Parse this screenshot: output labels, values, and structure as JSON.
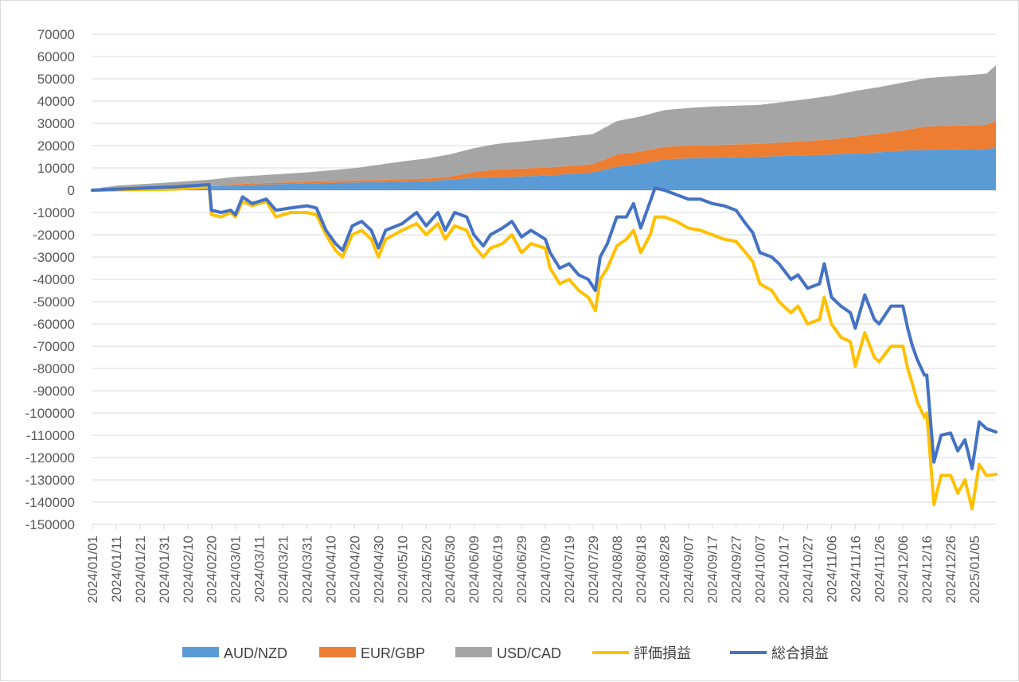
{
  "chart_data": {
    "type": "area",
    "title": "",
    "xlabel": "",
    "ylabel": "",
    "ylim": [
      -150000,
      70000
    ],
    "y_ticks": [
      70000,
      60000,
      50000,
      40000,
      30000,
      20000,
      10000,
      0,
      -10000,
      -20000,
      -30000,
      -40000,
      -50000,
      -60000,
      -70000,
      -80000,
      -90000,
      -100000,
      -110000,
      -120000,
      -130000,
      -140000,
      -150000
    ],
    "x_tick_labels": [
      "2024/01/01",
      "2024/01/11",
      "2024/01/21",
      "2024/01/31",
      "2024/02/10",
      "2024/02/20",
      "2024/03/01",
      "2024/03/11",
      "2024/03/21",
      "2024/03/31",
      "2024/04/10",
      "2024/04/20",
      "2024/04/30",
      "2024/05/10",
      "2024/05/20",
      "2024/05/30",
      "2024/06/09",
      "2024/06/19",
      "2024/06/29",
      "2024/07/09",
      "2024/07/19",
      "2024/07/29",
      "2024/08/08",
      "2024/08/18",
      "2024/08/28",
      "2024/09/07",
      "2024/09/17",
      "2024/09/27",
      "2024/10/07",
      "2024/10/17",
      "2024/10/27",
      "2024/11/06",
      "2024/11/16",
      "2024/11/26",
      "2024/12/06",
      "2024/12/16",
      "2024/12/26",
      "2025/01/05"
    ],
    "x_range": [
      "2024/01/01",
      "2025/01/14"
    ],
    "grid": "horizontal",
    "legend_position": "bottom",
    "stacked_area_series": [
      {
        "name": "AUD/NZD",
        "color": "#5b9bd5",
        "points": [
          [
            "2024/01/01",
            0
          ],
          [
            "2024/01/05",
            700
          ],
          [
            "2024/02/20",
            1800
          ],
          [
            "2024/03/11",
            2500
          ],
          [
            "2024/04/10",
            3300
          ],
          [
            "2024/05/20",
            4000
          ],
          [
            "2024/05/30",
            4800
          ],
          [
            "2024/06/09",
            5500
          ],
          [
            "2024/07/09",
            6500
          ],
          [
            "2024/07/29",
            8000
          ],
          [
            "2024/08/08",
            10500
          ],
          [
            "2024/08/18",
            11800
          ],
          [
            "2024/08/28",
            13800
          ],
          [
            "2024/09/07",
            14300
          ],
          [
            "2024/10/07",
            15000
          ],
          [
            "2024/11/06",
            16000
          ],
          [
            "2024/11/26",
            17000
          ],
          [
            "2024/12/06",
            17800
          ],
          [
            "2024/12/16",
            18100
          ],
          [
            "2025/01/10",
            18500
          ],
          [
            "2025/01/14",
            19000
          ]
        ]
      },
      {
        "name": "EUR/GBP",
        "color": "#ed7d31",
        "points": [
          [
            "2024/01/01",
            0
          ],
          [
            "2024/02/20",
            0
          ],
          [
            "2024/03/01",
            600
          ],
          [
            "2024/04/10",
            800
          ],
          [
            "2024/05/30",
            1300
          ],
          [
            "2024/06/09",
            2600
          ],
          [
            "2024/06/19",
            3500
          ],
          [
            "2024/07/29",
            3700
          ],
          [
            "2024/08/08",
            5500
          ],
          [
            "2024/09/07",
            5700
          ],
          [
            "2024/10/07",
            5800
          ],
          [
            "2024/11/06",
            6800
          ],
          [
            "2024/12/06",
            9000
          ],
          [
            "2024/12/16",
            10500
          ],
          [
            "2025/01/10",
            10800
          ],
          [
            "2025/01/14",
            12000
          ]
        ]
      },
      {
        "name": "USD/CAD",
        "color": "#a5a5a5",
        "points": [
          [
            "2024/01/01",
            0
          ],
          [
            "2024/01/11",
            1200
          ],
          [
            "2024/01/31",
            2000
          ],
          [
            "2024/02/20",
            3000
          ],
          [
            "2024/03/11",
            3500
          ],
          [
            "2024/03/31",
            4200
          ],
          [
            "2024/04/20",
            5500
          ],
          [
            "2024/05/10",
            8000
          ],
          [
            "2024/05/30",
            10000
          ],
          [
            "2024/06/19",
            11500
          ],
          [
            "2024/07/09",
            12800
          ],
          [
            "2024/07/29",
            13500
          ],
          [
            "2024/08/08",
            15000
          ],
          [
            "2024/08/28",
            16500
          ],
          [
            "2024/09/17",
            17300
          ],
          [
            "2024/10/07",
            17500
          ],
          [
            "2024/10/27",
            18800
          ],
          [
            "2024/11/16",
            20500
          ],
          [
            "2024/12/06",
            21500
          ],
          [
            "2024/12/16",
            21700
          ],
          [
            "2025/01/10",
            23000
          ],
          [
            "2025/01/14",
            25000
          ]
        ]
      }
    ],
    "line_series": [
      {
        "name": "評価損益",
        "color": "#ffc000",
        "points": [
          [
            "2024/01/01",
            0
          ],
          [
            "2024/02/05",
            500
          ],
          [
            "2024/02/19",
            1500
          ],
          [
            "2024/02/20",
            -11000
          ],
          [
            "2024/02/24",
            -12000
          ],
          [
            "2024/02/28",
            -10000
          ],
          [
            "2024/03/01",
            -12000
          ],
          [
            "2024/03/04",
            -5000
          ],
          [
            "2024/03/08",
            -7000
          ],
          [
            "2024/03/14",
            -5000
          ],
          [
            "2024/03/18",
            -12000
          ],
          [
            "2024/03/24",
            -10000
          ],
          [
            "2024/03/31",
            -10000
          ],
          [
            "2024/04/04",
            -11000
          ],
          [
            "2024/04/08",
            -20000
          ],
          [
            "2024/04/12",
            -27000
          ],
          [
            "2024/04/15",
            -30000
          ],
          [
            "2024/04/19",
            -20000
          ],
          [
            "2024/04/23",
            -18000
          ],
          [
            "2024/04/27",
            -22000
          ],
          [
            "2024/04/30",
            -30000
          ],
          [
            "2024/05/03",
            -22000
          ],
          [
            "2024/05/10",
            -18000
          ],
          [
            "2024/05/16",
            -15000
          ],
          [
            "2024/05/20",
            -20000
          ],
          [
            "2024/05/25",
            -15000
          ],
          [
            "2024/05/28",
            -22000
          ],
          [
            "2024/06/01",
            -16000
          ],
          [
            "2024/06/06",
            -18000
          ],
          [
            "2024/06/09",
            -25000
          ],
          [
            "2024/06/13",
            -30000
          ],
          [
            "2024/06/16",
            -26000
          ],
          [
            "2024/06/21",
            -24000
          ],
          [
            "2024/06/25",
            -20000
          ],
          [
            "2024/06/29",
            -28000
          ],
          [
            "2024/07/03",
            -24000
          ],
          [
            "2024/07/09",
            -26000
          ],
          [
            "2024/07/11",
            -35000
          ],
          [
            "2024/07/15",
            -42000
          ],
          [
            "2024/07/19",
            -40000
          ],
          [
            "2024/07/23",
            -45000
          ],
          [
            "2024/07/27",
            -48000
          ],
          [
            "2024/07/30",
            -54000
          ],
          [
            "2024/08/01",
            -40000
          ],
          [
            "2024/08/04",
            -35000
          ],
          [
            "2024/08/08",
            -25000
          ],
          [
            "2024/08/12",
            -22000
          ],
          [
            "2024/08/15",
            -18000
          ],
          [
            "2024/08/18",
            -28000
          ],
          [
            "2024/08/22",
            -20000
          ],
          [
            "2024/08/24",
            -12000
          ],
          [
            "2024/08/28",
            -12000
          ],
          [
            "2024/09/02",
            -14000
          ],
          [
            "2024/09/07",
            -17000
          ],
          [
            "2024/09/12",
            -18000
          ],
          [
            "2024/09/17",
            -20000
          ],
          [
            "2024/09/22",
            -22000
          ],
          [
            "2024/09/27",
            -23000
          ],
          [
            "2024/10/01",
            -28000
          ],
          [
            "2024/10/04",
            -32000
          ],
          [
            "2024/10/07",
            -42000
          ],
          [
            "2024/10/12",
            -45000
          ],
          [
            "2024/10/15",
            -50000
          ],
          [
            "2024/10/20",
            -55000
          ],
          [
            "2024/10/23",
            -52000
          ],
          [
            "2024/10/27",
            -60000
          ],
          [
            "2024/11/01",
            -58000
          ],
          [
            "2024/11/03",
            -48000
          ],
          [
            "2024/11/06",
            -60000
          ],
          [
            "2024/11/10",
            -66000
          ],
          [
            "2024/11/14",
            -68000
          ],
          [
            "2024/11/16",
            -79000
          ],
          [
            "2024/11/20",
            -64000
          ],
          [
            "2024/11/24",
            -75000
          ],
          [
            "2024/11/26",
            -77000
          ],
          [
            "2024/12/01",
            -70000
          ],
          [
            "2024/12/06",
            -70000
          ],
          [
            "2024/12/08",
            -80000
          ],
          [
            "2024/12/10",
            -87000
          ],
          [
            "2024/12/12",
            -95000
          ],
          [
            "2024/12/15",
            -102000
          ],
          [
            "2024/12/16",
            -100000
          ],
          [
            "2024/12/19",
            -141000
          ],
          [
            "2024/12/22",
            -128000
          ],
          [
            "2024/12/26",
            -128000
          ],
          [
            "2024/12/29",
            -136000
          ],
          [
            "2025/01/01",
            -130000
          ],
          [
            "2025/01/04",
            -143000
          ],
          [
            "2025/01/07",
            -123000
          ],
          [
            "2025/01/10",
            -128000
          ],
          [
            "2025/01/14",
            -127500
          ]
        ]
      },
      {
        "name": "総合損益",
        "color": "#4472c4",
        "points": [
          [
            "2024/01/01",
            0
          ],
          [
            "2024/02/05",
            1500
          ],
          [
            "2024/02/19",
            2500
          ],
          [
            "2024/02/20",
            -9000
          ],
          [
            "2024/02/24",
            -10000
          ],
          [
            "2024/02/28",
            -9000
          ],
          [
            "2024/03/01",
            -11000
          ],
          [
            "2024/03/04",
            -3000
          ],
          [
            "2024/03/08",
            -6000
          ],
          [
            "2024/03/14",
            -4000
          ],
          [
            "2024/03/18",
            -9000
          ],
          [
            "2024/03/24",
            -8000
          ],
          [
            "2024/03/31",
            -7000
          ],
          [
            "2024/04/04",
            -8000
          ],
          [
            "2024/04/08",
            -18000
          ],
          [
            "2024/04/12",
            -24000
          ],
          [
            "2024/04/15",
            -27000
          ],
          [
            "2024/04/19",
            -16000
          ],
          [
            "2024/04/23",
            -14000
          ],
          [
            "2024/04/27",
            -18000
          ],
          [
            "2024/04/30",
            -26000
          ],
          [
            "2024/05/03",
            -18000
          ],
          [
            "2024/05/10",
            -15000
          ],
          [
            "2024/05/16",
            -10000
          ],
          [
            "2024/05/20",
            -16000
          ],
          [
            "2024/05/25",
            -10000
          ],
          [
            "2024/05/28",
            -18000
          ],
          [
            "2024/06/01",
            -10000
          ],
          [
            "2024/06/06",
            -12000
          ],
          [
            "2024/06/09",
            -20000
          ],
          [
            "2024/06/13",
            -25000
          ],
          [
            "2024/06/16",
            -20000
          ],
          [
            "2024/06/21",
            -17000
          ],
          [
            "2024/06/25",
            -14000
          ],
          [
            "2024/06/29",
            -21000
          ],
          [
            "2024/07/03",
            -18000
          ],
          [
            "2024/07/09",
            -22000
          ],
          [
            "2024/07/11",
            -28000
          ],
          [
            "2024/07/15",
            -35000
          ],
          [
            "2024/07/19",
            -33000
          ],
          [
            "2024/07/23",
            -38000
          ],
          [
            "2024/07/27",
            -40000
          ],
          [
            "2024/07/30",
            -45000
          ],
          [
            "2024/08/01",
            -30000
          ],
          [
            "2024/08/04",
            -24000
          ],
          [
            "2024/08/08",
            -12000
          ],
          [
            "2024/08/12",
            -12000
          ],
          [
            "2024/08/15",
            -6000
          ],
          [
            "2024/08/18",
            -17000
          ],
          [
            "2024/08/22",
            -5000
          ],
          [
            "2024/08/24",
            1000
          ],
          [
            "2024/08/28",
            0
          ],
          [
            "2024/09/02",
            -2000
          ],
          [
            "2024/09/07",
            -4000
          ],
          [
            "2024/09/12",
            -4000
          ],
          [
            "2024/09/17",
            -6000
          ],
          [
            "2024/09/22",
            -7000
          ],
          [
            "2024/09/27",
            -9000
          ],
          [
            "2024/10/01",
            -15000
          ],
          [
            "2024/10/04",
            -19000
          ],
          [
            "2024/10/07",
            -28000
          ],
          [
            "2024/10/12",
            -30000
          ],
          [
            "2024/10/15",
            -33000
          ],
          [
            "2024/10/20",
            -40000
          ],
          [
            "2024/10/23",
            -38000
          ],
          [
            "2024/10/27",
            -44000
          ],
          [
            "2024/11/01",
            -42000
          ],
          [
            "2024/11/03",
            -33000
          ],
          [
            "2024/11/06",
            -48000
          ],
          [
            "2024/11/10",
            -52000
          ],
          [
            "2024/11/14",
            -55000
          ],
          [
            "2024/11/16",
            -62000
          ],
          [
            "2024/11/20",
            -47000
          ],
          [
            "2024/11/24",
            -58000
          ],
          [
            "2024/11/26",
            -60000
          ],
          [
            "2024/12/01",
            -52000
          ],
          [
            "2024/12/06",
            -52000
          ],
          [
            "2024/12/08",
            -62000
          ],
          [
            "2024/12/10",
            -70000
          ],
          [
            "2024/12/12",
            -76000
          ],
          [
            "2024/12/15",
            -83000
          ],
          [
            "2024/12/16",
            -83000
          ],
          [
            "2024/12/19",
            -122000
          ],
          [
            "2024/12/22",
            -110000
          ],
          [
            "2024/12/26",
            -109000
          ],
          [
            "2024/12/29",
            -117000
          ],
          [
            "2025/01/01",
            -112000
          ],
          [
            "2025/01/04",
            -125000
          ],
          [
            "2025/01/07",
            -104000
          ],
          [
            "2025/01/10",
            -107000
          ],
          [
            "2025/01/14",
            -108500
          ]
        ]
      }
    ]
  }
}
